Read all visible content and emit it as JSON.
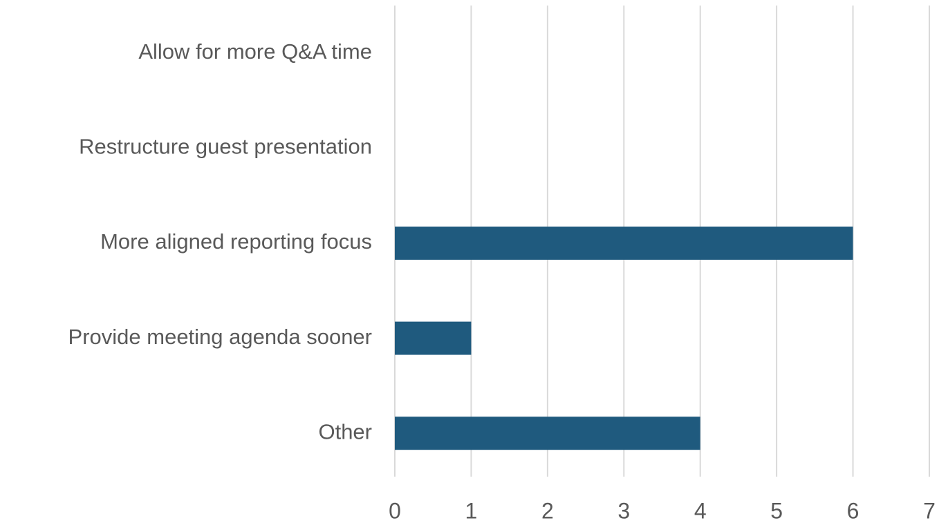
{
  "chart_data": {
    "type": "bar",
    "orientation": "horizontal",
    "categories": [
      "Allow for more Q&A time",
      "Restructure guest presentation",
      "More aligned reporting focus",
      "Provide meeting agenda sooner",
      "Other"
    ],
    "values": [
      0,
      0,
      6,
      1,
      4
    ],
    "color": "#1f5a7e",
    "xlim": [
      0,
      7
    ],
    "xticks": [
      0,
      1,
      2,
      3,
      4,
      5,
      6,
      7
    ],
    "grid": true
  }
}
